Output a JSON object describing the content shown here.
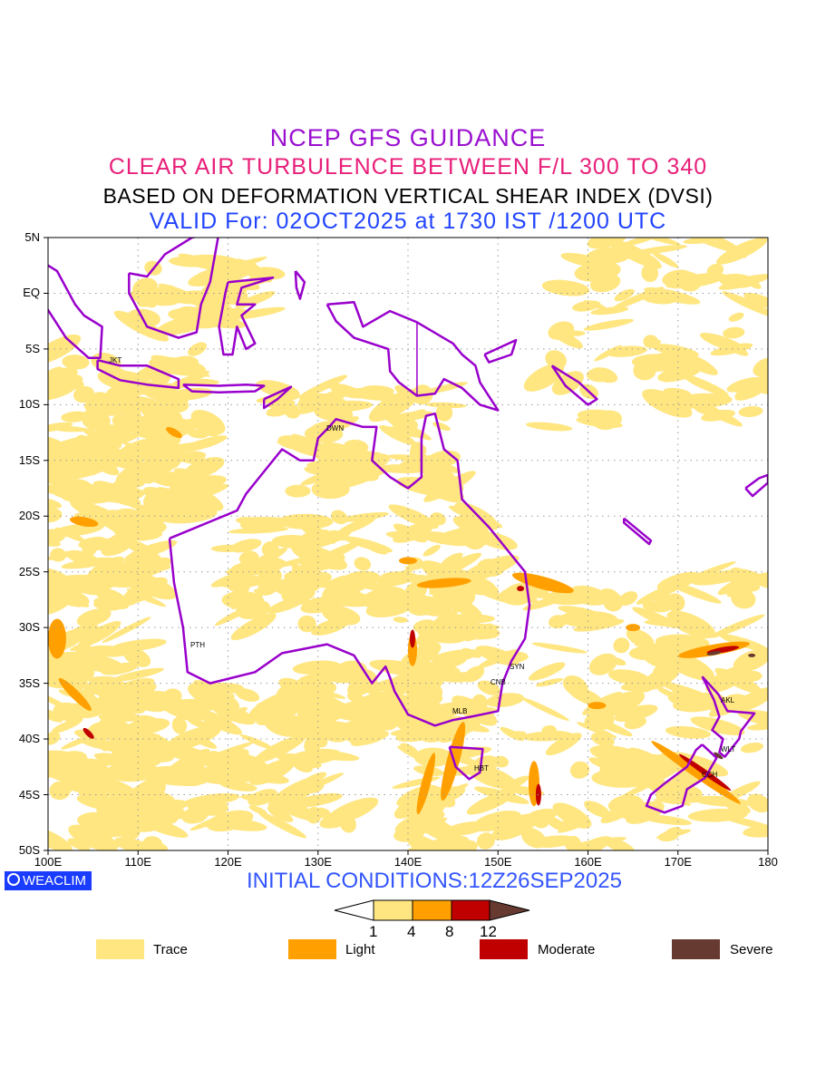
{
  "titles": {
    "line1": "NCEP GFS GUIDANCE",
    "line2": "CLEAR AIR TURBULENCE BETWEEN F/L 300 TO 340",
    "line3": "BASED ON DEFORMATION VERTICAL SHEAR INDEX (DVSI)",
    "line4": "VALID For: 02OCT2025 at 1730 IST /1200 UTC"
  },
  "axes": {
    "lat_labels": [
      "5N",
      "EQ",
      "5S",
      "10S",
      "15S",
      "20S",
      "25S",
      "30S",
      "35S",
      "40S",
      "45S",
      "50S"
    ],
    "lon_labels": [
      "100E",
      "110E",
      "120E",
      "130E",
      "140E",
      "150E",
      "160E",
      "170E",
      "180"
    ]
  },
  "cities": [
    "JKT",
    "DWN",
    "PTH",
    "SYN",
    "CNB",
    "MLB",
    "HBT",
    "AKL",
    "WLT",
    "CCH"
  ],
  "branding": {
    "logo_text": "WEACLIM"
  },
  "initial_conditions": "INITIAL CONDITIONS:12Z26SEP2025",
  "colorbar": {
    "thresholds": [
      "1",
      "4",
      "8",
      "12"
    ],
    "colors": [
      "#ffffff",
      "#ffe680",
      "#ffa000",
      "#c00000",
      "#663a30"
    ]
  },
  "legend": [
    {
      "label": "Trace",
      "color": "#ffe680"
    },
    {
      "label": "Light",
      "color": "#ffa000"
    },
    {
      "label": "Moderate",
      "color": "#c00000"
    },
    {
      "label": "Severe",
      "color": "#663a30"
    }
  ],
  "coast_color": "#9900cc"
}
